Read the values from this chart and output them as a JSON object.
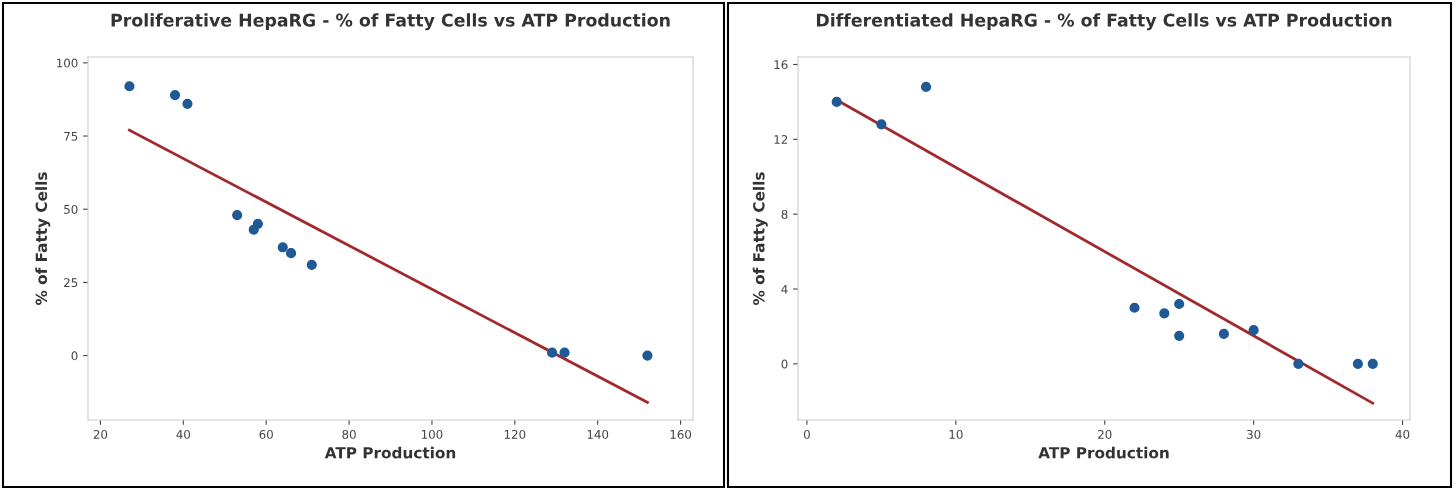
{
  "chart_data": [
    {
      "type": "scatter",
      "title": "Proliferative HepaRG - % of Fatty Cells vs ATP Production",
      "xlabel": "ATP Production",
      "ylabel": "% of Fatty Cells",
      "xlim": [
        17,
        163
      ],
      "ylim": [
        -22,
        102
      ],
      "xticks": [
        20,
        40,
        60,
        80,
        100,
        120,
        140,
        160
      ],
      "yticks": [
        0,
        25,
        50,
        75,
        100
      ],
      "grid": false,
      "legend": false,
      "series": [
        {
          "marker": "circle",
          "color": "#1f5a96",
          "x": [
            27,
            38,
            41,
            53,
            57,
            58,
            64,
            66,
            71,
            129,
            132,
            152
          ],
          "values": [
            92,
            89,
            86,
            48,
            43,
            45,
            37,
            35,
            31,
            1,
            1,
            0
          ]
        },
        {
          "type": "line",
          "color": "#a3282b",
          "x": [
            27,
            152
          ],
          "values": [
            77,
            -16
          ]
        }
      ]
    },
    {
      "type": "scatter",
      "title": "Differentiated HepaRG - % of Fatty Cells vs ATP Production",
      "xlabel": "ATP Production",
      "ylabel": "% of Fatty Cells",
      "xlim": [
        -0.6,
        40.5
      ],
      "ylim": [
        -3,
        16.4
      ],
      "xticks": [
        0,
        10,
        20,
        30,
        40
      ],
      "yticks": [
        0,
        4,
        8,
        12,
        16
      ],
      "grid": false,
      "legend": false,
      "series": [
        {
          "marker": "circle",
          "color": "#1f5a96",
          "x": [
            2,
            5,
            8,
            22,
            24,
            25,
            25,
            28,
            30,
            33,
            37,
            38
          ],
          "values": [
            14,
            12.8,
            14.8,
            3,
            2.7,
            3.2,
            1.5,
            1.6,
            1.8,
            0,
            0,
            0
          ]
        },
        {
          "type": "line",
          "color": "#a3282b",
          "x": [
            2,
            38
          ],
          "values": [
            14.1,
            -2.1
          ]
        }
      ]
    }
  ]
}
